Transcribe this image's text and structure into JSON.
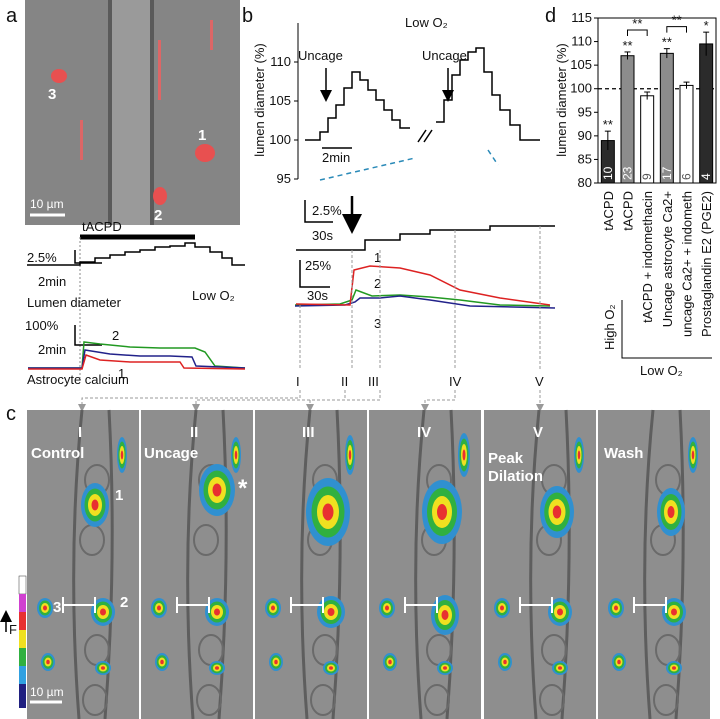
{
  "panel_a": {
    "label": "a",
    "cells": [
      "1",
      "2",
      "3"
    ],
    "scale_bar": "10 µm",
    "stimulus": "tACPD",
    "lumen_scale": "2.5%",
    "lumen_time": "2min",
    "lumen_label": "Lumen diameter",
    "condition": "Low O₂",
    "calcium_scale": "100%",
    "calcium_time": "2min",
    "calcium_label": "Astrocyte calcium",
    "trace_labels": [
      "2",
      "1"
    ]
  },
  "panel_b": {
    "label": "b",
    "title": "Low O₂",
    "y_label": "lumen diameter (%)",
    "ylim": [
      95,
      115
    ],
    "yticks": [
      95,
      100,
      105,
      110
    ],
    "uncage": [
      "Uncage",
      "Uncage"
    ],
    "time_scale": "2min",
    "zoom_scale_y": "2.5%",
    "zoom_scale_x": "30s",
    "calcium_scale_y": "25%",
    "calcium_scale_x": "30s",
    "trace_labels": [
      "1",
      "2",
      "3"
    ],
    "timepoints": [
      "I",
      "II",
      "III",
      "IV",
      "V"
    ]
  },
  "panel_c": {
    "label": "c",
    "frames": [
      {
        "numeral": "I",
        "caption": [
          "Control"
        ]
      },
      {
        "numeral": "II",
        "caption": [
          "Uncage"
        ]
      },
      {
        "numeral": "III"
      },
      {
        "numeral": "IV"
      },
      {
        "numeral": "V",
        "caption": [
          "Peak",
          "Dilation"
        ]
      },
      {
        "caption": [
          "Wash"
        ]
      }
    ],
    "cells": [
      "1",
      "2",
      "3"
    ],
    "marker": "*",
    "scale_bar": "10 µm",
    "intensity_label": "F"
  },
  "chart_data": {
    "type": "bar",
    "label": "d",
    "y_label": "lumen diameter (%)",
    "categories": [
      "tACPD",
      "tACPD",
      "tACPD + indomethacin",
      "Uncage astrocyte Ca2+",
      "uncage Ca2+ + indometh",
      "Prostaglandin E2 (PGE2)"
    ],
    "values": [
      89,
      107,
      98.5,
      107.5,
      100.7,
      109.5
    ],
    "errors": [
      2,
      0.8,
      0.8,
      1,
      0.7,
      2.5
    ],
    "n": [
      10,
      23,
      9,
      17,
      6,
      4
    ],
    "colors": [
      "#2b2b2b",
      "#8c8c8c",
      "#ffffff",
      "#8c8c8c",
      "#ffffff",
      "#2b2b2b"
    ],
    "stars": [
      "**",
      "**",
      null,
      "**",
      null,
      "*"
    ],
    "brackets": [
      {
        "pair": [
          1,
          2
        ],
        "label": "**"
      },
      {
        "pair": [
          3,
          4
        ],
        "label": "**"
      }
    ],
    "groups": [
      "High O₂",
      "Low O₂"
    ],
    "reference_line": 100,
    "ylim": [
      80,
      115
    ],
    "yticks": [
      80,
      85,
      90,
      95,
      100,
      105,
      110,
      115
    ]
  }
}
